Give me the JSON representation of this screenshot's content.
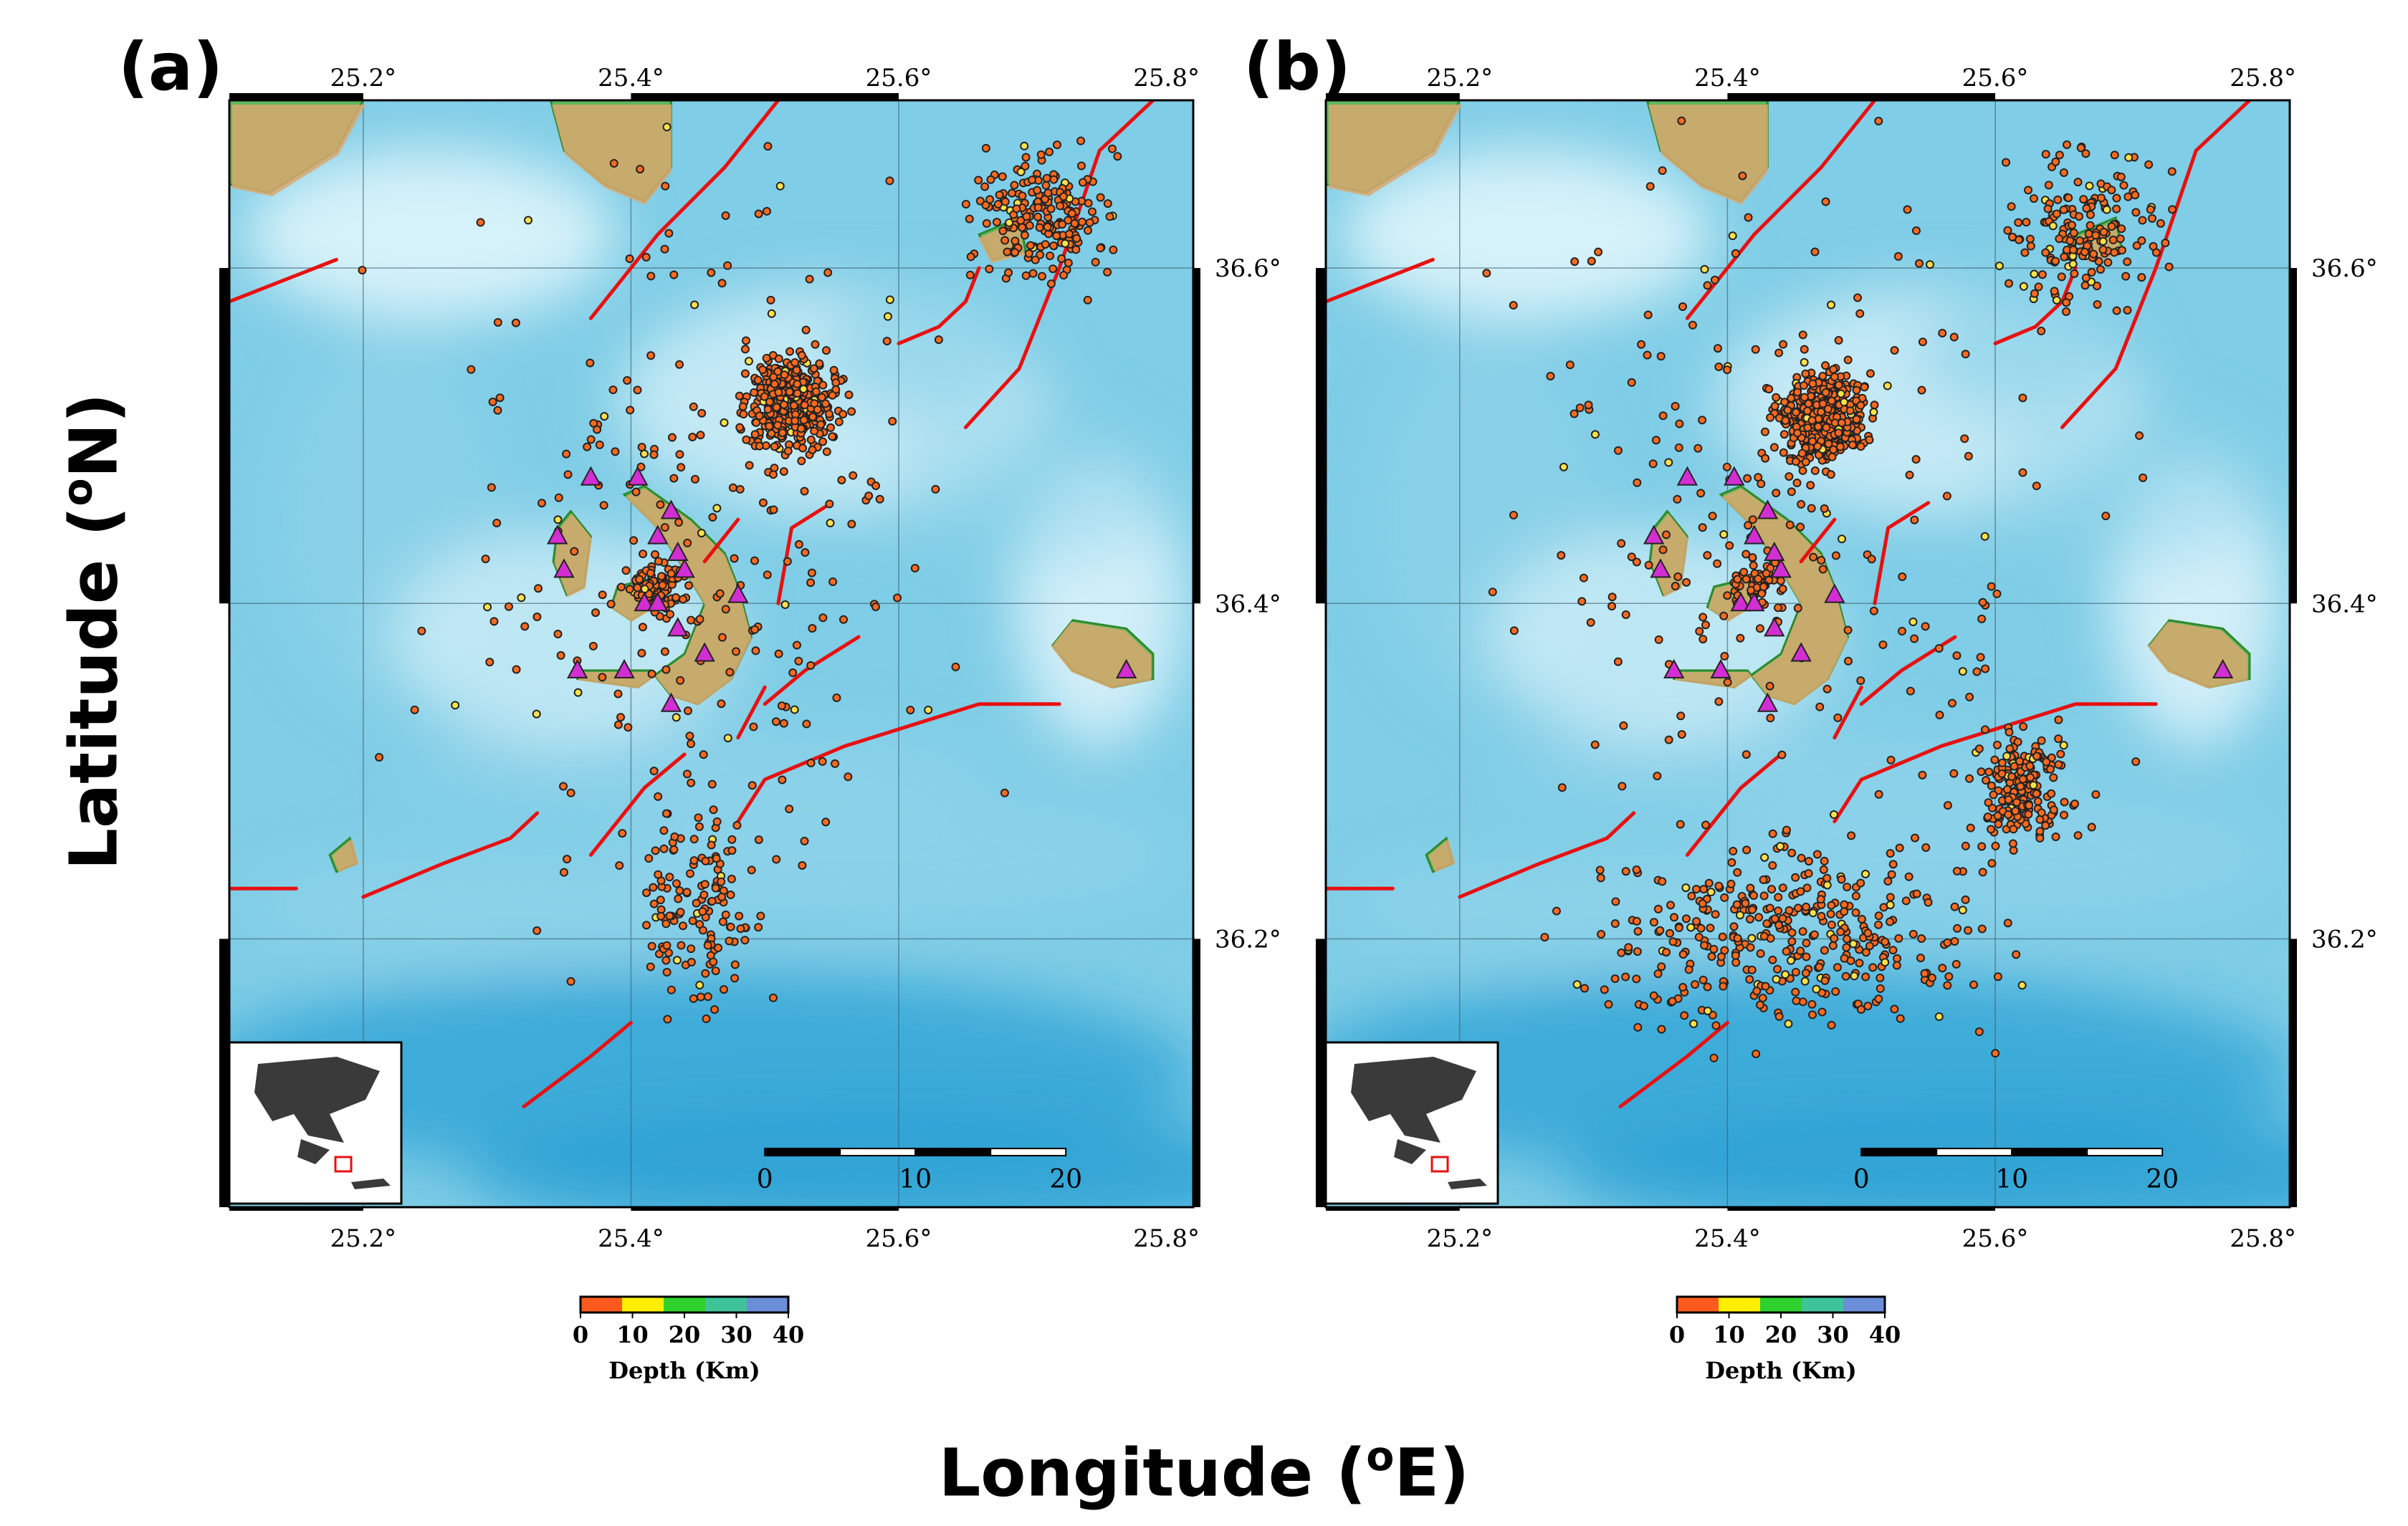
{
  "figure": {
    "x_title": {
      "main": "Longitude (",
      "sup": "o",
      "end": "E)"
    },
    "y_title": {
      "main": "Latitude (",
      "sup": "o",
      "end": "N)"
    }
  },
  "panels": [
    {
      "label": "(a)",
      "epicenter_density": "central-cluster-and-north-east"
    },
    {
      "label": "(b)",
      "epicenter_density": "central-cluster-and-south-east"
    }
  ],
  "axes": {
    "lon_ticks": [
      "25.2°",
      "25.4°",
      "25.6°",
      "25.8°"
    ],
    "lat_ticks": [
      "36.6°",
      "36.4°",
      "36.2°"
    ],
    "lon_range": [
      25.1,
      25.82
    ],
    "lat_range": [
      36.04,
      36.7
    ]
  },
  "scale_bar": {
    "ticks": [
      "0",
      "10",
      "20"
    ],
    "units": "km"
  },
  "colorbar": {
    "title": "Depth (Km)",
    "ticks": [
      "0",
      "10",
      "20",
      "30",
      "40"
    ],
    "colors": [
      "#ff5a1e",
      "#ffee00",
      "#2ed12e",
      "#3fc49a",
      "#6a8ed8"
    ]
  },
  "legend_symbols": {
    "epicenter": "small orange-filled circle",
    "station": "magenta triangle",
    "fault": "red line",
    "inset": "map of Greece with red study-area box"
  },
  "colors": {
    "sea_shallow": "#dff5fb",
    "sea_mid": "#8fd3ea",
    "sea_deep": "#2aa0d4",
    "land_low": "#5cb85c",
    "land_high": "#d9a870",
    "fault": "#e81010",
    "station": "#d32ed3",
    "epicenter": "#ff6a1e"
  }
}
